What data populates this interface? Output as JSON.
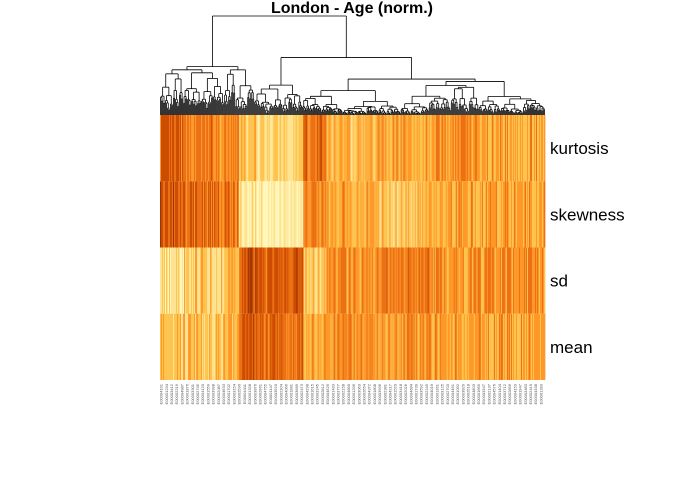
{
  "chart_data": {
    "type": "heatmap",
    "title": "London - Age (norm.)",
    "rows": [
      "kurtosis",
      "skewness",
      "sd",
      "mean"
    ],
    "column_count": 384,
    "dendrogram": "columns",
    "color_scale": [
      "#fff7bc",
      "#fee391",
      "#fec44f",
      "#fe9929",
      "#ec7014",
      "#cc4c02",
      "#993404"
    ],
    "column_labels": [
      "E00004191",
      "E00001234",
      "E00003412",
      "E00002219",
      "E00004987",
      "E00001876",
      "E00003301",
      "E00002745",
      "E00004120",
      "E00001559",
      "E00003998",
      "E00002087",
      "E00004633",
      "E00001702",
      "E00003154",
      "E00002590",
      "E00004411",
      "E00001328",
      "E00003876",
      "E00002961",
      "E00004755",
      "E00001147",
      "E00003520",
      "E00002304",
      "E00004066",
      "E00001981",
      "E00003689",
      "E00002473",
      "E00004298",
      "E00001615",
      "E00003245",
      "E00002812",
      "E00004529",
      "E00001433",
      "E00003777",
      "E00002158",
      "E00004890",
      "E00001296",
      "E00003063",
      "E00002654",
      "E00004372",
      "E00001808",
      "E00003936",
      "E00002381",
      "E00004217",
      "E00001520",
      "E00003418",
      "E00002026",
      "E00004684",
      "E00001739",
      "E00003592",
      "E00002245",
      "E00004019",
      "E00001361",
      "E00003125",
      "E00002703",
      "E00004461",
      "E00001092",
      "E00003829",
      "E00002518",
      "E00004803",
      "E00001665",
      "E00003347",
      "E00002137",
      "E00004576",
      "E00001404",
      "E00003712",
      "E00002896",
      "E00004153",
      "E00001947",
      "E00003483",
      "E00002419",
      "E00004338",
      "E00001283"
    ]
  }
}
